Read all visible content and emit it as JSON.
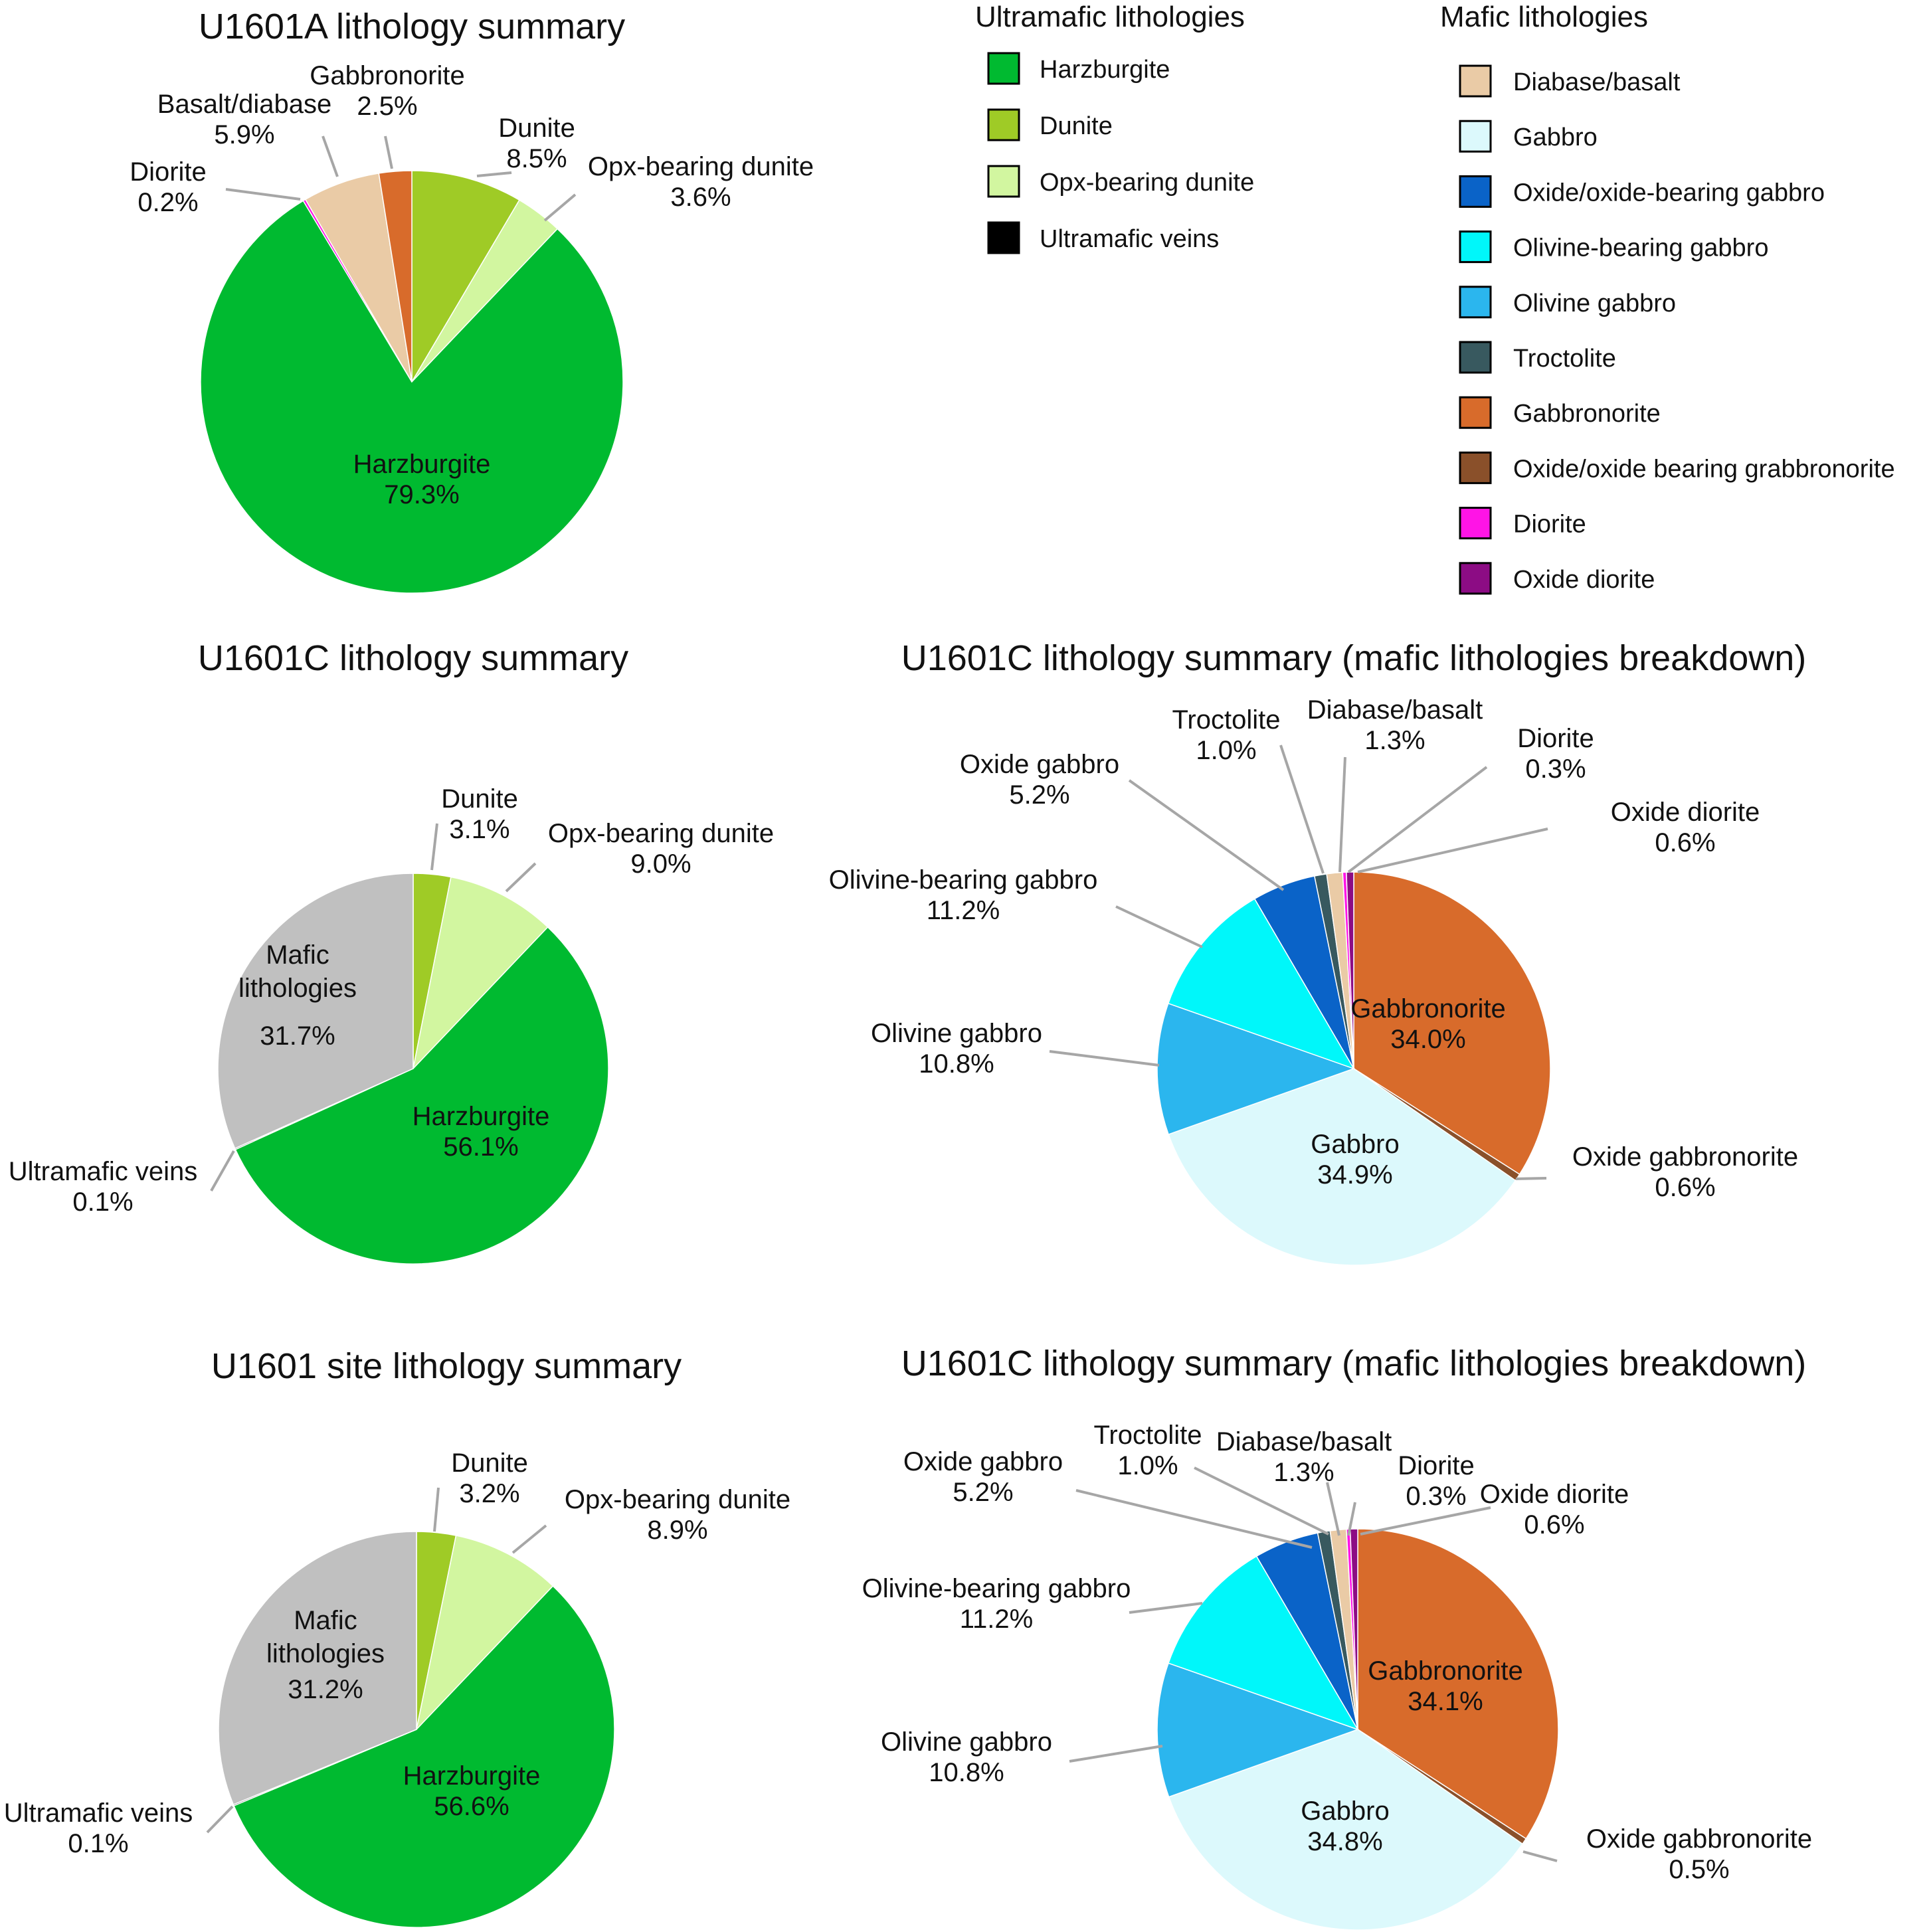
{
  "legends": [
    {
      "title": "Ultramafic lithologies",
      "items": [
        {
          "label": "Harzburgite",
          "color": "#00BA30"
        },
        {
          "label": "Dunite",
          "color": "#9FCB26"
        },
        {
          "label": "Opx-bearing dunite",
          "color": "#D2F6A0"
        },
        {
          "label": "Ultramafic veins",
          "color": "#000000"
        }
      ]
    },
    {
      "title": "Mafic lithologies",
      "items": [
        {
          "label": "Diabase/basalt",
          "color": "#EACBA6"
        },
        {
          "label": "Gabbro",
          "color": "#DCF9FC"
        },
        {
          "label": "Oxide/oxide-bearing gabbro",
          "color": "#0A63C8"
        },
        {
          "label": "Olivine-bearing gabbro",
          "color": "#00F7FA"
        },
        {
          "label": "Olivine gabbro",
          "color": "#2BB6EE"
        },
        {
          "label": "Troctolite",
          "color": "#38595F"
        },
        {
          "label": "Gabbronorite",
          "color": "#D86B2B"
        },
        {
          "label": "Oxide/oxide bearing grabbronorite",
          "color": "#8A502A"
        },
        {
          "label": "Diorite",
          "color": "#FF14E6"
        },
        {
          "label": "Oxide diorite",
          "color": "#8C0C84"
        }
      ]
    }
  ],
  "chart_data": [
    {
      "type": "pie",
      "title": "U1601A lithology summary",
      "slices": [
        {
          "label": "Dunite",
          "value": 8.5,
          "display": "8.5%",
          "color": "#9FCB26"
        },
        {
          "label": "Opx-bearing dunite",
          "value": 3.6,
          "display": "3.6%",
          "color": "#D2F6A0"
        },
        {
          "label": "Harzburgite",
          "value": 79.3,
          "display": "79.3%",
          "color": "#00BA30"
        },
        {
          "label": "Diorite",
          "value": 0.2,
          "display": "0.2%",
          "color": "#FF14E6"
        },
        {
          "label": "Basalt/diabase",
          "value": 5.9,
          "display": "5.9%",
          "color": "#EACBA6"
        },
        {
          "label": "Gabbronorite",
          "value": 2.5,
          "display": "2.5%",
          "color": "#D86B2B"
        }
      ]
    },
    {
      "type": "pie",
      "title": "U1601C lithology summary",
      "slices": [
        {
          "label": "Dunite",
          "value": 3.1,
          "display": "3.1%",
          "color": "#9FCB26"
        },
        {
          "label": "Opx-bearing dunite",
          "value": 9.0,
          "display": "9.0%",
          "color": "#D2F6A0"
        },
        {
          "label": "Harzburgite",
          "value": 56.1,
          "display": "56.1%",
          "color": "#00BA30"
        },
        {
          "label": "Ultramafic veins",
          "value": 0.1,
          "display": "0.1%",
          "color": "#000000"
        },
        {
          "label": "Mafic lithologies",
          "value": 31.7,
          "display": "31.7%",
          "color": "#C0C0C0"
        }
      ]
    },
    {
      "type": "pie",
      "title": "U1601C lithology summary (mafic lithologies breakdown)",
      "slices": [
        {
          "label": "Gabbronorite",
          "value": 34.0,
          "display": "34.0%",
          "color": "#D86B2B"
        },
        {
          "label": "Oxide gabbronorite",
          "value": 0.6,
          "display": "0.6%",
          "color": "#8A502A"
        },
        {
          "label": "Gabbro",
          "value": 34.9,
          "display": "34.9%",
          "color": "#DCF9FC"
        },
        {
          "label": "Olivine gabbro",
          "value": 10.8,
          "display": "10.8%",
          "color": "#2BB6EE"
        },
        {
          "label": "Olivine-bearing gabbro",
          "value": 11.2,
          "display": "11.2%",
          "color": "#00F7FA"
        },
        {
          "label": "Oxide gabbro",
          "value": 5.2,
          "display": "5.2%",
          "color": "#0A63C8"
        },
        {
          "label": "Troctolite",
          "value": 1.0,
          "display": "1.0%",
          "color": "#38595F"
        },
        {
          "label": "Diabase/basalt",
          "value": 1.3,
          "display": "1.3%",
          "color": "#EACBA6"
        },
        {
          "label": "Diorite",
          "value": 0.3,
          "display": "0.3%",
          "color": "#FF14E6"
        },
        {
          "label": "Oxide diorite",
          "value": 0.6,
          "display": "0.6%",
          "color": "#8C0C84"
        }
      ]
    },
    {
      "type": "pie",
      "title": "U1601 site lithology summary",
      "slices": [
        {
          "label": "Dunite",
          "value": 3.2,
          "display": "3.2%",
          "color": "#9FCB26"
        },
        {
          "label": "Opx-bearing dunite",
          "value": 8.9,
          "display": "8.9%",
          "color": "#D2F6A0"
        },
        {
          "label": "Harzburgite",
          "value": 56.6,
          "display": "56.6%",
          "color": "#00BA30"
        },
        {
          "label": "Ultramafic veins",
          "value": 0.1,
          "display": "0.1%",
          "color": "#000000"
        },
        {
          "label": "Mafic lithologies",
          "value": 31.2,
          "display": "31.2%",
          "color": "#C0C0C0"
        }
      ]
    },
    {
      "type": "pie",
      "title": "U1601C lithology summary (mafic lithologies breakdown)",
      "slices": [
        {
          "label": "Gabbronorite",
          "value": 34.1,
          "display": "34.1%",
          "color": "#D86B2B"
        },
        {
          "label": "Oxide gabbronorite",
          "value": 0.5,
          "display": "0.5%",
          "color": "#8A502A"
        },
        {
          "label": "Gabbro",
          "value": 34.8,
          "display": "34.8%",
          "color": "#DCF9FC"
        },
        {
          "label": "Olivine gabbro",
          "value": 10.8,
          "display": "10.8%",
          "color": "#2BB6EE"
        },
        {
          "label": "Olivine-bearing gabbro",
          "value": 11.2,
          "display": "11.2%",
          "color": "#00F7FA"
        },
        {
          "label": "Oxide gabbro",
          "value": 5.2,
          "display": "5.2%",
          "color": "#0A63C8"
        },
        {
          "label": "Troctolite",
          "value": 1.0,
          "display": "1.0%",
          "color": "#38595F"
        },
        {
          "label": "Diabase/basalt",
          "value": 1.3,
          "display": "1.3%",
          "color": "#EACBA6"
        },
        {
          "label": "Diorite",
          "value": 0.3,
          "display": "0.3%",
          "color": "#FF14E6"
        },
        {
          "label": "Oxide diorite",
          "value": 0.6,
          "display": "0.6%",
          "color": "#8C0C84"
        }
      ]
    }
  ]
}
